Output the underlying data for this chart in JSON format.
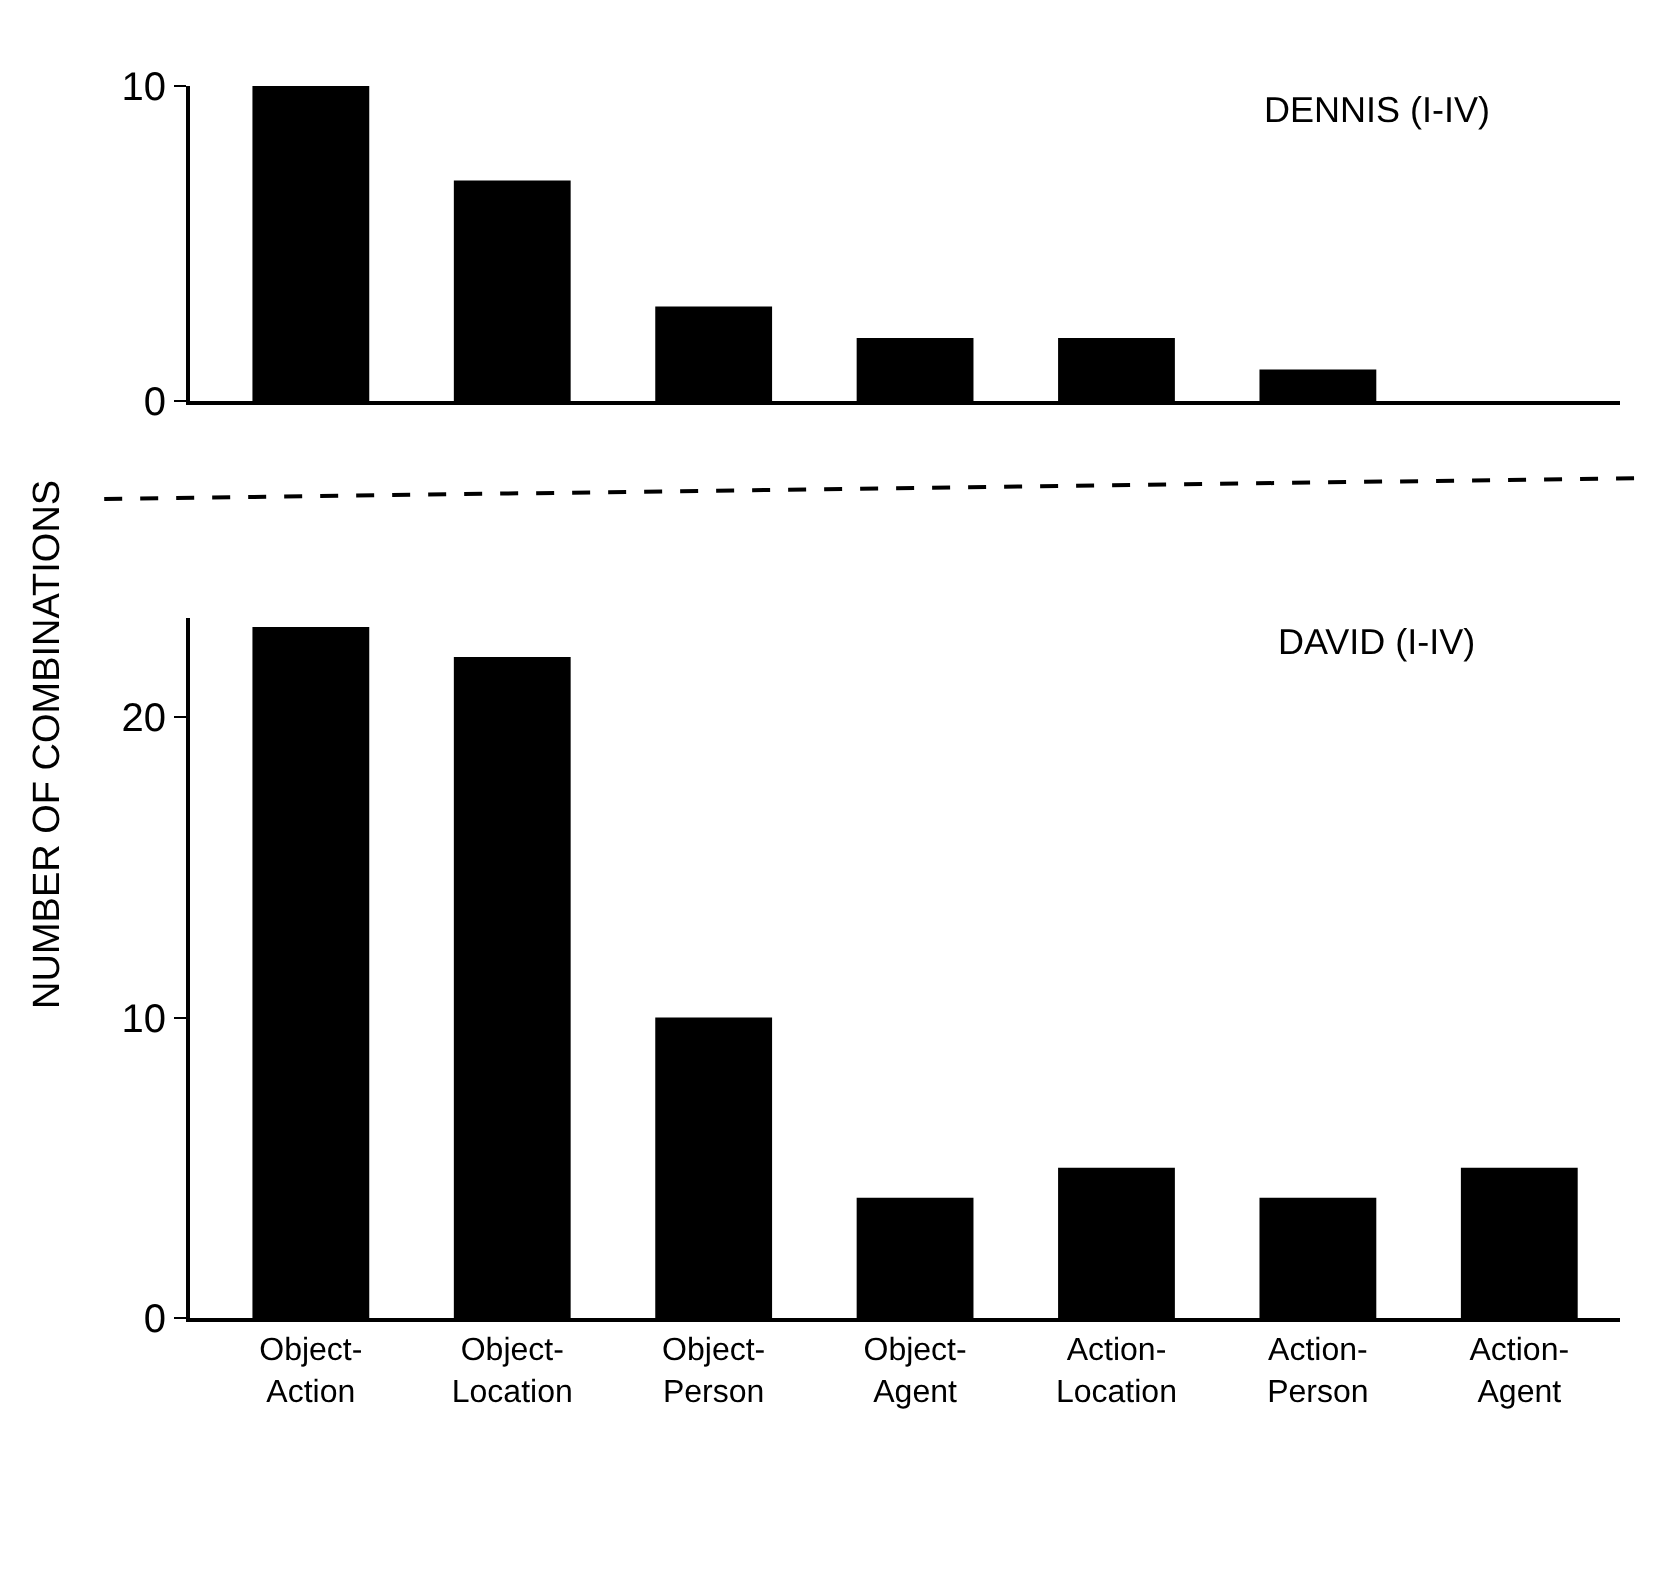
{
  "chart_data": [
    {
      "type": "bar",
      "title": "DENNIS (I-IV)",
      "ylabel": "NUMBER OF COMBINATIONS",
      "categories": [
        null,
        null,
        null,
        null,
        null,
        null,
        null
      ],
      "values": [
        10,
        7,
        3,
        2,
        2,
        1,
        0
      ],
      "color": "#000000",
      "ylim": [
        0,
        10
      ],
      "yticks": [
        0,
        10
      ],
      "tick_labels": "y"
    },
    {
      "type": "bar",
      "title": "DAVID (I-IV)",
      "categories": [
        "Object-Action",
        "Object-Location",
        "Object-Person",
        "Object-Agent",
        "Action-Location",
        "Action-Person",
        "Action-Agent"
      ],
      "values": [
        23,
        22,
        10,
        4,
        5,
        4,
        5
      ],
      "color": "#000000",
      "ylim": [
        0,
        23.3
      ],
      "yticks": [
        0,
        10,
        20
      ]
    }
  ]
}
